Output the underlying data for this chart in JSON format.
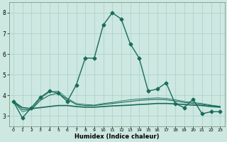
{
  "xlabel": "Humidex (Indice chaleur)",
  "ylabel": "",
  "bg_color": "#cce8e0",
  "grid_color": "#aacec8",
  "line_color": "#1a6b5a",
  "xlim": [
    -0.5,
    23.5
  ],
  "ylim": [
    2.5,
    8.5
  ],
  "xticks": [
    0,
    1,
    2,
    3,
    4,
    5,
    6,
    7,
    8,
    9,
    10,
    11,
    12,
    13,
    14,
    15,
    16,
    17,
    18,
    19,
    20,
    21,
    22,
    23
  ],
  "yticks": [
    3,
    4,
    5,
    6,
    7,
    8
  ],
  "series": [
    {
      "x": [
        0,
        1,
        2,
        3,
        4,
        5,
        6,
        7,
        8,
        9,
        10,
        11,
        12,
        13,
        14,
        15,
        16,
        17,
        18,
        19,
        20,
        21,
        22,
        23
      ],
      "y": [
        3.7,
        2.9,
        3.4,
        3.9,
        4.2,
        4.1,
        3.7,
        4.5,
        5.8,
        5.8,
        7.4,
        8.0,
        7.7,
        6.5,
        5.8,
        4.2,
        4.3,
        4.6,
        3.6,
        3.4,
        3.8,
        3.1,
        3.2,
        3.2
      ],
      "marker": "D",
      "markersize": 2.5,
      "linewidth": 1.0,
      "linestyle": "-"
    },
    {
      "x": [
        0,
        1,
        2,
        3,
        4,
        5,
        6,
        7,
        8,
        9,
        10,
        11,
        12,
        13,
        14,
        15,
        16,
        17,
        18,
        19,
        20,
        21,
        22,
        23
      ],
      "y": [
        3.7,
        3.4,
        3.35,
        3.4,
        3.45,
        3.5,
        3.5,
        3.45,
        3.42,
        3.42,
        3.45,
        3.48,
        3.5,
        3.52,
        3.55,
        3.57,
        3.6,
        3.6,
        3.58,
        3.55,
        3.52,
        3.5,
        3.45,
        3.42
      ],
      "marker": null,
      "markersize": 0,
      "linewidth": 1.2,
      "linestyle": "-"
    },
    {
      "x": [
        0,
        1,
        2,
        3,
        4,
        5,
        6,
        7,
        8,
        9,
        10,
        11,
        12,
        13,
        14,
        15,
        16,
        17,
        18,
        19,
        20,
        21,
        22,
        23
      ],
      "y": [
        3.7,
        3.3,
        3.3,
        3.75,
        4.0,
        4.1,
        3.8,
        3.55,
        3.5,
        3.5,
        3.55,
        3.6,
        3.65,
        3.7,
        3.75,
        3.78,
        3.8,
        3.78,
        3.72,
        3.65,
        3.6,
        3.55,
        3.5,
        3.45
      ],
      "marker": null,
      "markersize": 0,
      "linewidth": 0.8,
      "linestyle": "-"
    },
    {
      "x": [
        0,
        1,
        2,
        3,
        4,
        5,
        6,
        7,
        8,
        9,
        10,
        11,
        12,
        13,
        14,
        15,
        16,
        17,
        18,
        19,
        20,
        21,
        22,
        23
      ],
      "y": [
        3.7,
        3.2,
        3.3,
        3.85,
        4.15,
        4.2,
        3.85,
        3.6,
        3.55,
        3.52,
        3.6,
        3.65,
        3.72,
        3.78,
        3.82,
        3.85,
        3.87,
        3.85,
        3.78,
        3.7,
        3.65,
        3.6,
        3.52,
        3.46
      ],
      "marker": null,
      "markersize": 0,
      "linewidth": 0.6,
      "linestyle": "-"
    }
  ]
}
